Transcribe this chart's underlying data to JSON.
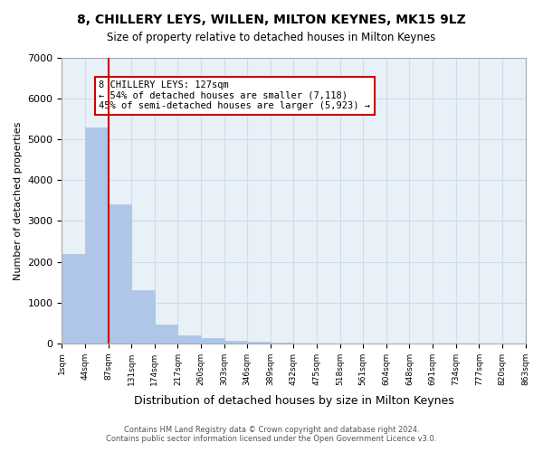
{
  "title": "8, CHILLERY LEYS, WILLEN, MILTON KEYNES, MK15 9LZ",
  "subtitle": "Size of property relative to detached houses in Milton Keynes",
  "xlabel": "Distribution of detached houses by size in Milton Keynes",
  "ylabel": "Number of detached properties",
  "bin_labels": [
    "1sqm",
    "44sqm",
    "87sqm",
    "131sqm",
    "174sqm",
    "217sqm",
    "260sqm",
    "303sqm",
    "346sqm",
    "389sqm",
    "432sqm",
    "475sqm",
    "518sqm",
    "561sqm",
    "604sqm",
    "648sqm",
    "691sqm",
    "734sqm",
    "777sqm",
    "820sqm",
    "863sqm"
  ],
  "bar_values": [
    2200,
    5300,
    3400,
    1300,
    450,
    200,
    120,
    60,
    30,
    10,
    5,
    3,
    2,
    1,
    1,
    0,
    0,
    0,
    0,
    0
  ],
  "bar_color": "#aec6e8",
  "bar_edgecolor": "#aec6e8",
  "vline_x": 2.0,
  "vline_color": "#cc0000",
  "annotation_text": "8 CHILLERY LEYS: 127sqm\n← 54% of detached houses are smaller (7,118)\n45% of semi-detached houses are larger (5,923) →",
  "annotation_box_color": "#ffffff",
  "annotation_box_edgecolor": "#cc0000",
  "grid_color": "#d0dce8",
  "background_color": "#e8f0f8",
  "ylim": [
    0,
    7000
  ],
  "yticks": [
    0,
    1000,
    2000,
    3000,
    4000,
    5000,
    6000,
    7000
  ],
  "footer_line1": "Contains HM Land Registry data © Crown copyright and database right 2024.",
  "footer_line2": "Contains public sector information licensed under the Open Government Licence v3.0."
}
